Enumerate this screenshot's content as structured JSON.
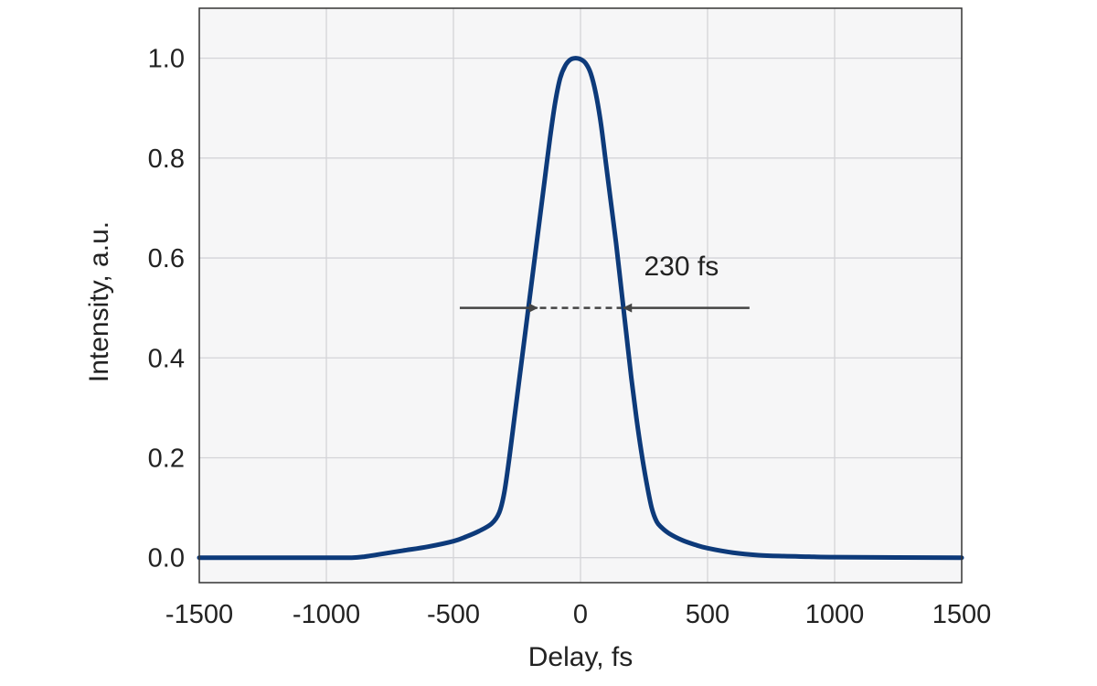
{
  "chart_data": {
    "type": "line",
    "title": "",
    "xlabel": "Delay, fs",
    "ylabel": "Intensity, a.u.",
    "xlim": [
      -1500,
      1500
    ],
    "ylim": [
      -0.05,
      1.1
    ],
    "xticks": [
      -1500,
      -1000,
      -500,
      0,
      500,
      1000,
      1500
    ],
    "xtick_labels": [
      "-1500",
      "-1000",
      "-500",
      "0",
      "500",
      "1000",
      "1500"
    ],
    "yticks": [
      0.0,
      0.2,
      0.4,
      0.6,
      0.8,
      1.0
    ],
    "ytick_labels": [
      "0.0",
      "0.2",
      "0.4",
      "0.6",
      "0.8",
      "1.0"
    ],
    "grid": true,
    "series": [
      {
        "color": "#0d3a7a",
        "x": [
          -1500,
          -1000,
          -900,
          -850,
          -800,
          -700,
          -600,
          -500,
          -450,
          -400,
          -350,
          -320,
          -300,
          -280,
          -260,
          -240,
          -220,
          -200,
          -180,
          -160,
          -140,
          -120,
          -100,
          -80,
          -60,
          -40,
          -20,
          0,
          20,
          40,
          60,
          80,
          100,
          120,
          140,
          160,
          180,
          200,
          220,
          240,
          260,
          280,
          300,
          320,
          350,
          400,
          450,
          500,
          600,
          700,
          800,
          900,
          1000,
          1500
        ],
        "y": [
          0.0,
          0.0,
          0.0,
          0.002,
          0.006,
          0.014,
          0.022,
          0.033,
          0.042,
          0.053,
          0.068,
          0.09,
          0.13,
          0.2,
          0.28,
          0.36,
          0.44,
          0.52,
          0.6,
          0.68,
          0.76,
          0.84,
          0.91,
          0.96,
          0.985,
          0.997,
          1.0,
          0.998,
          0.99,
          0.97,
          0.93,
          0.87,
          0.79,
          0.71,
          0.63,
          0.54,
          0.45,
          0.36,
          0.28,
          0.21,
          0.15,
          0.1,
          0.072,
          0.06,
          0.048,
          0.035,
          0.026,
          0.019,
          0.01,
          0.005,
          0.003,
          0.002,
          0.001,
          0.0
        ]
      }
    ],
    "annotations": [
      {
        "text": "230 fs",
        "x": 250,
        "y": 0.565
      },
      {
        "type": "dashed-line",
        "x1": -160,
        "x2": 160,
        "y": 0.5
      },
      {
        "type": "arrow",
        "from_x": -475,
        "to_x": -170,
        "y": 0.5
      },
      {
        "type": "arrow",
        "from_x": 665,
        "to_x": 170,
        "y": 0.5
      }
    ]
  }
}
